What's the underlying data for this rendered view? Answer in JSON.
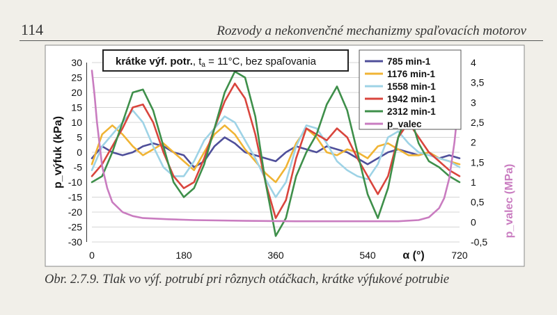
{
  "page": {
    "page_number": "114",
    "running_head": "Rozvody a nekonvenčné mechanizmy spaľovacích motorov",
    "caption": "Obr. 2.7.9. Tlak vo výf. potrubí pri rôznych otáčkach, krátke výfukové potrubie"
  },
  "chart_data": {
    "type": "line",
    "title_box": {
      "bold": "krátke výf. potr.",
      "t_symbol": "t",
      "t_sub": "a",
      "rest": " = 11°C, bez spaľovania"
    },
    "xlabel": "α (°)",
    "ylabel_left": "p_výfuk (kPa)",
    "ylabel_right": "p_valec (MPa)",
    "xlim": [
      0,
      720
    ],
    "ylim_left": [
      -30,
      30
    ],
    "ylim_right": [
      -0.5,
      4
    ],
    "x_ticks": [
      "0",
      "180",
      "360",
      "540",
      "720"
    ],
    "y_ticks_left": [
      "30",
      "25",
      "20",
      "15",
      "10",
      "5",
      "0",
      "-5",
      "-10",
      "-15",
      "-20",
      "-25",
      "-30"
    ],
    "y_ticks_right": [
      "4",
      "3,5",
      "3",
      "2,5",
      "2",
      "1,5",
      "1",
      "0,5",
      "0",
      "-0,5"
    ],
    "grid": true,
    "legend_position": "top-right",
    "series": [
      {
        "name": "785 min-1",
        "color": "#4f4f9a",
        "axis": "left",
        "x": [
          0,
          20,
          40,
          60,
          80,
          100,
          120,
          140,
          160,
          180,
          200,
          220,
          240,
          260,
          280,
          300,
          320,
          340,
          360,
          380,
          400,
          420,
          440,
          460,
          480,
          500,
          520,
          540,
          560,
          580,
          600,
          620,
          640,
          660,
          680,
          700,
          720
        ],
        "y": [
          -2,
          2,
          0,
          -1,
          0,
          2,
          3,
          2,
          0,
          -1,
          -5,
          -3,
          2,
          5,
          3,
          0,
          -1,
          -2,
          -3,
          0,
          2,
          1,
          0,
          2,
          1,
          0,
          -2,
          -4,
          -2,
          0,
          1,
          0,
          -1,
          0,
          -2,
          -1,
          -2
        ]
      },
      {
        "name": "1176 min-1",
        "color": "#f0b434",
        "axis": "left",
        "x": [
          0,
          20,
          40,
          60,
          80,
          100,
          120,
          140,
          160,
          180,
          200,
          220,
          240,
          260,
          280,
          300,
          320,
          340,
          360,
          380,
          400,
          420,
          440,
          460,
          480,
          500,
          520,
          540,
          560,
          580,
          600,
          620,
          640,
          660,
          680,
          700,
          720
        ],
        "y": [
          -4,
          6,
          9,
          6,
          2,
          -1,
          1,
          3,
          0,
          -3,
          -6,
          0,
          6,
          9,
          6,
          1,
          -3,
          -7,
          -10,
          -5,
          3,
          8,
          5,
          0,
          -1,
          1,
          0,
          -2,
          2,
          3,
          1,
          -1,
          -1,
          0,
          -2,
          -3,
          -4
        ]
      },
      {
        "name": "1558 min-1",
        "color": "#9ed3e6",
        "axis": "left",
        "x": [
          0,
          20,
          40,
          60,
          80,
          100,
          120,
          140,
          160,
          180,
          200,
          220,
          240,
          260,
          280,
          300,
          320,
          340,
          360,
          380,
          400,
          420,
          440,
          460,
          480,
          500,
          520,
          540,
          560,
          580,
          600,
          620,
          640,
          660,
          680,
          700,
          720
        ],
        "y": [
          -6,
          2,
          6,
          10,
          14,
          10,
          2,
          -5,
          -8,
          -8,
          -3,
          4,
          8,
          12,
          10,
          4,
          -2,
          -9,
          -15,
          -10,
          2,
          9,
          8,
          3,
          -3,
          -6,
          -8,
          -9,
          -4,
          5,
          7,
          3,
          0,
          -1,
          -2,
          -3,
          -5
        ]
      },
      {
        "name": "1942 min-1",
        "color": "#d9453d",
        "axis": "left",
        "x": [
          0,
          20,
          40,
          60,
          80,
          100,
          120,
          140,
          160,
          180,
          200,
          220,
          240,
          260,
          280,
          300,
          320,
          340,
          360,
          380,
          400,
          420,
          440,
          460,
          480,
          500,
          520,
          540,
          560,
          580,
          600,
          620,
          640,
          660,
          680,
          700,
          720
        ],
        "y": [
          -8,
          -4,
          2,
          8,
          15,
          16,
          10,
          0,
          -8,
          -12,
          -10,
          -2,
          8,
          17,
          23,
          18,
          6,
          -10,
          -22,
          -16,
          -2,
          8,
          6,
          4,
          8,
          5,
          -2,
          -8,
          -14,
          -8,
          5,
          10,
          5,
          0,
          -3,
          -6,
          -8
        ]
      },
      {
        "name": "2312 min-1",
        "color": "#3e8f4a",
        "axis": "left",
        "x": [
          0,
          20,
          40,
          60,
          80,
          100,
          120,
          140,
          160,
          180,
          200,
          220,
          240,
          260,
          280,
          300,
          320,
          340,
          360,
          380,
          400,
          420,
          440,
          460,
          480,
          500,
          520,
          540,
          560,
          580,
          600,
          620,
          640,
          660,
          680,
          700,
          720
        ],
        "y": [
          -10,
          -8,
          0,
          10,
          20,
          21,
          14,
          2,
          -10,
          -15,
          -12,
          -4,
          8,
          20,
          27,
          25,
          12,
          -10,
          -28,
          -22,
          -8,
          0,
          6,
          16,
          22,
          14,
          0,
          -14,
          -22,
          -12,
          5,
          14,
          3,
          -3,
          -5,
          -8,
          -10
        ]
      },
      {
        "name": "p_valec",
        "color": "#c97cc0",
        "axis": "right",
        "x": [
          0,
          5,
          10,
          20,
          30,
          40,
          60,
          80,
          100,
          150,
          200,
          300,
          400,
          500,
          600,
          640,
          660,
          680,
          690,
          700,
          710,
          715,
          720
        ],
        "y": [
          3.8,
          3.2,
          2.5,
          1.4,
          0.85,
          0.5,
          0.25,
          0.15,
          0.1,
          0.07,
          0.05,
          0.03,
          0.02,
          0.02,
          0.02,
          0.05,
          0.12,
          0.35,
          0.6,
          1.1,
          2.0,
          2.6,
          3.2
        ]
      }
    ]
  }
}
